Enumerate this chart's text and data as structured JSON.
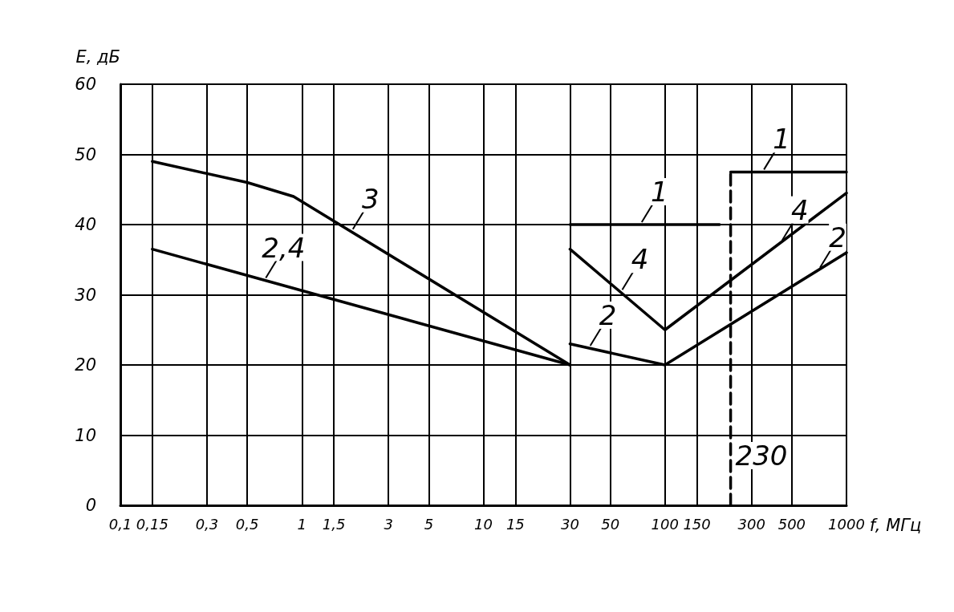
{
  "chart_data": {
    "type": "line",
    "xlabel": "f, МГц",
    "ylabel": "E, дБ",
    "log": "x",
    "grid": true,
    "marker": "none",
    "xlim": [
      0.1,
      1000
    ],
    "xticks": [
      {
        "value": 0.1,
        "label": "0,1"
      },
      {
        "value": 0.15,
        "label": "0,15"
      },
      {
        "value": 0.3,
        "label": "0,3"
      },
      {
        "value": 0.5,
        "label": "0,5"
      },
      1,
      {
        "value": 1.5,
        "label": "1,5"
      },
      3,
      5,
      10,
      15,
      30,
      50,
      100,
      150,
      300,
      500,
      1000
    ],
    "ylim": [
      0,
      60
    ],
    "yticks": [
      0,
      10,
      20,
      30,
      40,
      50,
      60
    ],
    "series": [
      {
        "color": "#000000",
        "x": [
          0.15,
          0.5,
          0.9,
          30
        ],
        "values": [
          49,
          46,
          44,
          20
        ]
      },
      {
        "color": "#000000",
        "x": [
          0.15,
          30
        ],
        "values": [
          36.5,
          20
        ]
      },
      {
        "color": "#000000",
        "x": [
          30,
          200,
          215,
          230,
          1000
        ],
        "values": [
          40,
          40,
          null,
          47.5,
          47.5
        ]
      },
      {
        "color": "#000000",
        "x": [
          30,
          100,
          1000
        ],
        "values": [
          36.5,
          25,
          44.5
        ]
      },
      {
        "color": "#000000",
        "x": [
          30,
          100,
          1000
        ],
        "values": [
          23,
          20,
          36
        ]
      },
      {
        "color": "#000000",
        "x": [
          230,
          230
        ],
        "values": [
          0,
          47.5
        ],
        "line_style": "dashed"
      }
    ],
    "annotations": [
      {
        "text": "3",
        "x": 1.87,
        "y": 39
      },
      {
        "text": "2,4",
        "x": 0.62,
        "y": 32.05
      },
      {
        "text": "1",
        "x": 73,
        "y": 40
      },
      {
        "text": "4",
        "x": 57,
        "y": 30.37
      },
      {
        "text": "2",
        "x": 38,
        "y": 22.41
      },
      {
        "text": "1",
        "x": 344,
        "y": 47.5
      },
      {
        "text": "4",
        "x": 433,
        "y": 37.41
      },
      {
        "text": "2",
        "x": 700,
        "y": 33.52
      },
      {
        "text": "230",
        "x": 230
      }
    ]
  }
}
